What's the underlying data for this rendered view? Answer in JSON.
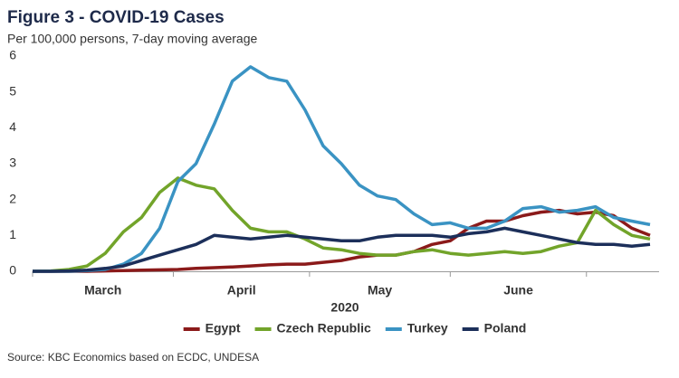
{
  "chart_data": {
    "type": "line",
    "title": "Figure 3 - COVID-19 Cases",
    "subtitle": "Per 100,000 persons, 7-day moving average",
    "xlabel": "2020",
    "source": "Source: KBC Economics based on ECDC, UNDESA",
    "categories": [
      "March",
      "April",
      "May",
      "June"
    ],
    "x": [
      0,
      4,
      8,
      12,
      16,
      20,
      24,
      28,
      32,
      36,
      40,
      44,
      48,
      52,
      56,
      60,
      64,
      68,
      72,
      76,
      80,
      84,
      88,
      92,
      96,
      100,
      104,
      108,
      112,
      116,
      120,
      124,
      128,
      132,
      136
    ],
    "xlim": [
      0,
      138
    ],
    "xticks": [
      0,
      31,
      61,
      92,
      122
    ],
    "ylim": [
      0,
      6
    ],
    "yticks": [
      0,
      1,
      2,
      3,
      4,
      5,
      6
    ],
    "grid": false,
    "legend": "bottom",
    "series": [
      {
        "name": "Egypt",
        "color": "#8b1a1a",
        "values": [
          0,
          0,
          0,
          0,
          0.01,
          0.02,
          0.03,
          0.04,
          0.05,
          0.08,
          0.1,
          0.12,
          0.15,
          0.18,
          0.2,
          0.2,
          0.25,
          0.3,
          0.4,
          0.45,
          0.45,
          0.55,
          0.75,
          0.85,
          1.2,
          1.4,
          1.4,
          1.55,
          1.65,
          1.7,
          1.6,
          1.65,
          1.55,
          1.2,
          1.0
        ]
      },
      {
        "name": "Czech Republic",
        "color": "#72a42a",
        "values": [
          0,
          0.01,
          0.05,
          0.15,
          0.5,
          1.1,
          1.5,
          2.2,
          2.6,
          2.4,
          2.3,
          1.7,
          1.2,
          1.1,
          1.1,
          0.9,
          0.65,
          0.6,
          0.5,
          0.45,
          0.45,
          0.55,
          0.6,
          0.5,
          0.45,
          0.5,
          0.55,
          0.5,
          0.55,
          0.7,
          0.8,
          1.7,
          1.3,
          1.0,
          0.9
        ]
      },
      {
        "name": "Turkey",
        "color": "#3a93c3",
        "values": [
          0,
          0,
          0,
          0.02,
          0.05,
          0.2,
          0.5,
          1.2,
          2.5,
          3.0,
          4.1,
          5.3,
          5.7,
          5.4,
          5.3,
          4.5,
          3.5,
          3.0,
          2.4,
          2.1,
          2.0,
          1.6,
          1.3,
          1.35,
          1.2,
          1.2,
          1.4,
          1.75,
          1.8,
          1.65,
          1.7,
          1.8,
          1.5,
          1.4,
          1.3
        ]
      },
      {
        "name": "Poland",
        "color": "#1c2f5a",
        "values": [
          0,
          0,
          0.01,
          0.03,
          0.08,
          0.15,
          0.3,
          0.45,
          0.6,
          0.75,
          1.0,
          0.95,
          0.9,
          0.95,
          1.0,
          0.95,
          0.9,
          0.85,
          0.85,
          0.95,
          1.0,
          1.0,
          1.0,
          0.95,
          1.05,
          1.1,
          1.2,
          1.1,
          1.0,
          0.9,
          0.8,
          0.75,
          0.75,
          0.7,
          0.75
        ]
      }
    ]
  }
}
